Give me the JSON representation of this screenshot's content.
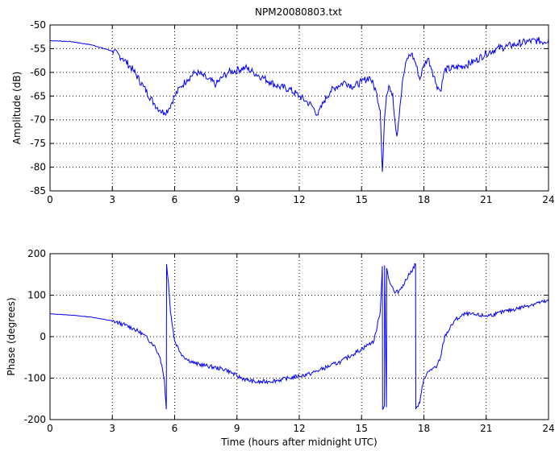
{
  "figure": {
    "title": "NPM20080803.txt",
    "shared_xlabel": "Time (hours after midnight UTC)"
  },
  "chart_data": [
    {
      "type": "line",
      "title": "NPM20080803.txt",
      "xlabel": "",
      "ylabel": "Amplitude (dB)",
      "xlim": [
        0,
        24
      ],
      "ylim": [
        -85,
        -50
      ],
      "xticks": [
        0,
        3,
        6,
        9,
        12,
        15,
        18,
        21,
        24
      ],
      "yticks": [
        -85,
        -80,
        -75,
        -70,
        -65,
        -60,
        -55,
        -50
      ],
      "grid": true,
      "color": "#0000ff",
      "noise": 0.8,
      "x": [
        0,
        1,
        2,
        3,
        3.5,
        4,
        4.5,
        5,
        5.3,
        5.5,
        5.7,
        6,
        6.3,
        6.6,
        7,
        7.3,
        7.6,
        8,
        8.3,
        8.6,
        9,
        9.4,
        9.8,
        10.2,
        10.6,
        11,
        11.5,
        12,
        12.3,
        12.6,
        12.9,
        13.2,
        13.5,
        13.8,
        14.2,
        14.6,
        15,
        15.4,
        15.7,
        15.9,
        16,
        16.1,
        16.2,
        16.35,
        16.5,
        16.6,
        16.7,
        16.85,
        17,
        17.2,
        17.4,
        17.6,
        17.8,
        18,
        18.2,
        18.4,
        18.6,
        18.8,
        19,
        19.5,
        20,
        20.5,
        21,
        21.5,
        22,
        22.5,
        23,
        23.5,
        23.8,
        24
      ],
      "y": [
        -53.3,
        -53.5,
        -54.2,
        -55.5,
        -57,
        -59.5,
        -63,
        -66.5,
        -68,
        -68.5,
        -67.8,
        -65,
        -63,
        -61.5,
        -60,
        -60.5,
        -61.5,
        -62.5,
        -61,
        -60,
        -59.5,
        -59,
        -60,
        -61,
        -62,
        -63,
        -63.5,
        -65,
        -66,
        -67,
        -69,
        -66,
        -64,
        -63,
        -62,
        -63,
        -62,
        -61,
        -64,
        -68,
        -81,
        -70,
        -65,
        -63,
        -64.5,
        -70,
        -73.5,
        -67,
        -61,
        -57,
        -56,
        -58,
        -61.5,
        -58.5,
        -57,
        -59.5,
        -62.5,
        -64,
        -59.5,
        -59,
        -58.5,
        -57.5,
        -56,
        -55,
        -54.5,
        -54,
        -53.5,
        -53.3,
        -53.6,
        -53
      ]
    },
    {
      "type": "line",
      "title": "",
      "xlabel": "Time (hours after midnight UTC)",
      "ylabel": "Phase (degrees)",
      "xlim": [
        0,
        24
      ],
      "ylim": [
        -200,
        200
      ],
      "xticks": [
        0,
        3,
        6,
        9,
        12,
        15,
        18,
        21,
        24
      ],
      "yticks": [
        -200,
        -100,
        0,
        100,
        200
      ],
      "grid": true,
      "color": "#0000ff",
      "noise": 5,
      "x": [
        0,
        1,
        2,
        3,
        3.5,
        4,
        4.5,
        5,
        5.3,
        5.5,
        5.6,
        5.61,
        5.7,
        5.8,
        6,
        6.3,
        6.6,
        7,
        7.5,
        8,
        8.5,
        9,
        9.5,
        10,
        10.5,
        11,
        11.5,
        12,
        12.5,
        13,
        13.5,
        14,
        14.5,
        15,
        15.3,
        15.6,
        15.9,
        16,
        16.01,
        16.1,
        16.11,
        16.2,
        16.21,
        16.3,
        16.6,
        16.8,
        17,
        17.3,
        17.6,
        17.61,
        17.8,
        18,
        18.3,
        18.6,
        18.8,
        19,
        19.5,
        20,
        20.5,
        21,
        21.5,
        22,
        22.5,
        23,
        23.5,
        24
      ],
      "y": [
        55,
        52,
        47,
        38,
        30,
        20,
        5,
        -20,
        -50,
        -100,
        -175,
        175,
        130,
        60,
        -10,
        -40,
        -55,
        -65,
        -70,
        -75,
        -80,
        -95,
        -105,
        -110,
        -108,
        -105,
        -100,
        -95,
        -90,
        -80,
        -70,
        -60,
        -45,
        -30,
        -20,
        -10,
        60,
        170,
        -175,
        -165,
        172,
        -170,
        165,
        140,
        105,
        110,
        125,
        150,
        175,
        -175,
        -160,
        -100,
        -80,
        -75,
        -50,
        0,
        40,
        55,
        52,
        50,
        55,
        62,
        68,
        75,
        82,
        85
      ]
    }
  ]
}
